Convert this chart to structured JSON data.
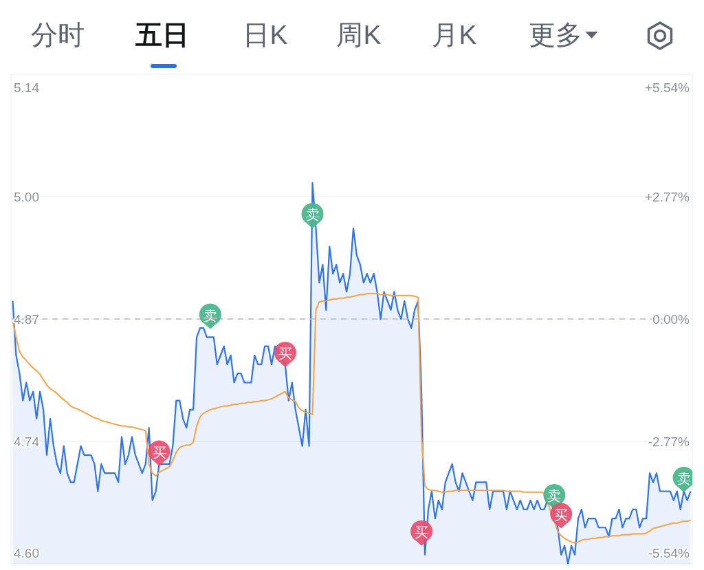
{
  "chart_data": {
    "type": "area",
    "annotations": [
      "分时",
      "五日",
      "日K",
      "周K",
      "月K",
      "更多"
    ],
    "categories": [
      null,
      null,
      null,
      null,
      null,
      null,
      null,
      null,
      null,
      null,
      null,
      null,
      null,
      null,
      null,
      null,
      null,
      null,
      null,
      null,
      null,
      null,
      null,
      null,
      null,
      null,
      null,
      null,
      null,
      null,
      null,
      null,
      null,
      null,
      null,
      null,
      null,
      null,
      null,
      null,
      null,
      null,
      null,
      null,
      null,
      null,
      null,
      null,
      null,
      null,
      null,
      null,
      null,
      null,
      null,
      null,
      null,
      null,
      null,
      null,
      null,
      null,
      null,
      null,
      null,
      null,
      null,
      null,
      null,
      null,
      null,
      null,
      null,
      null,
      null,
      null,
      null,
      null,
      null,
      null,
      null,
      null,
      null,
      null,
      null,
      null,
      null,
      null,
      null,
      null,
      null,
      null,
      null,
      null,
      null,
      null,
      null,
      null,
      null,
      null,
      null,
      null,
      null,
      null,
      null,
      null,
      null,
      null,
      null,
      null,
      null,
      null,
      null,
      null,
      null,
      null,
      null,
      null,
      null,
      null,
      null,
      null,
      null,
      null,
      null,
      null,
      null,
      null,
      null,
      null,
      null,
      null,
      null,
      null,
      null,
      null,
      null,
      null,
      null,
      null,
      null,
      null,
      null,
      null,
      null,
      null,
      null,
      null,
      null,
      null,
      null,
      null,
      null,
      null,
      null,
      null,
      null,
      null,
      null,
      null,
      null,
      null,
      null,
      null,
      null,
      null,
      null,
      null,
      null,
      null,
      null,
      null,
      null,
      null,
      null,
      null,
      null,
      null,
      null,
      null,
      null,
      null,
      null,
      null,
      null,
      null,
      null,
      null,
      null,
      null,
      null,
      null,
      null,
      null,
      null,
      null,
      null,
      null,
      null,
      null
    ],
    "series": [
      {
        "color": "#2f74ea",
        "values": [
          4.89,
          4.83,
          4.81,
          4.78,
          4.8,
          4.78,
          4.79,
          4.76,
          4.79,
          4.77,
          4.72,
          4.76,
          4.73,
          4.71,
          4.7,
          4.73,
          4.7,
          4.69,
          4.69,
          4.71,
          4.73,
          4.72,
          4.72,
          4.72,
          4.71,
          4.68,
          4.71,
          4.7,
          4.7,
          4.7,
          4.7,
          4.69,
          4.74,
          4.71,
          4.72,
          4.74,
          4.72,
          4.71,
          4.7,
          4.71,
          4.75,
          4.67,
          4.68,
          4.71,
          4.71,
          4.71,
          4.71,
          4.73,
          4.78,
          4.78,
          4.76,
          4.75,
          4.77,
          4.77,
          4.85,
          4.86,
          4.86,
          4.85,
          4.85,
          4.85,
          4.82,
          4.83,
          4.84,
          4.82,
          4.83,
          4.8,
          4.81,
          4.81,
          4.8,
          4.8,
          4.8,
          4.83,
          4.82,
          4.82,
          4.84,
          4.84,
          4.82,
          4.84,
          null,
          null,
          4.82,
          4.78,
          4.8,
          4.77,
          4.75,
          4.73,
          4.77,
          4.73,
          5.02,
          4.97,
          4.91,
          4.93,
          4.88,
          4.95,
          4.92,
          4.93,
          4.91,
          4.92,
          4.9,
          4.92,
          4.97,
          4.94,
          4.93,
          4.91,
          4.92,
          4.91,
          4.92,
          4.9,
          4.87,
          4.9,
          4.89,
          4.88,
          4.9,
          4.88,
          4.87,
          4.89,
          4.87,
          4.86,
          4.88,
          4.89,
          4.79,
          4.61,
          4.66,
          4.68,
          4.65,
          4.67,
          4.66,
          4.69,
          4.7,
          4.71,
          4.69,
          4.68,
          4.7,
          4.69,
          4.68,
          4.67,
          4.69,
          4.69,
          4.69,
          4.69,
          4.66,
          4.68,
          4.68,
          4.68,
          4.68,
          4.66,
          4.68,
          4.67,
          4.66,
          4.67,
          4.66,
          4.66,
          4.67,
          4.66,
          4.67,
          4.66,
          4.66,
          4.67,
          4.67,
          null,
          4.64,
          4.61,
          4.62,
          4.6,
          4.62,
          4.61,
          4.65,
          4.66,
          4.64,
          4.65,
          4.65,
          4.65,
          4.64,
          4.64,
          4.64,
          4.63,
          4.65,
          4.65,
          4.66,
          4.64,
          4.65,
          4.65,
          4.66,
          4.66,
          4.64,
          4.65,
          4.65,
          4.7,
          4.69,
          4.7,
          4.68,
          4.68,
          4.68,
          4.68,
          4.67,
          4.68,
          4.66,
          4.68,
          4.67,
          4.68
        ]
      },
      {
        "type": "line",
        "color": "#f5a348",
        "values": [
          4.868,
          4.85,
          4.834,
          4.828,
          4.824,
          4.82,
          4.816,
          4.813,
          4.809,
          4.803,
          4.797,
          4.793,
          4.791,
          4.788,
          4.784,
          4.781,
          4.778,
          4.774,
          4.772,
          4.771,
          4.769,
          4.767,
          4.765,
          4.763,
          4.761,
          4.76,
          4.758,
          4.757,
          4.756,
          4.755,
          4.754,
          4.753,
          4.752,
          4.752,
          4.751,
          4.751,
          4.75,
          4.749,
          4.748,
          4.747,
          4.71,
          4.7,
          4.697,
          4.701,
          4.703,
          4.705,
          4.707,
          4.714,
          4.723,
          4.728,
          4.73,
          4.731,
          4.731,
          4.734,
          4.752,
          4.762,
          4.766,
          4.768,
          4.77,
          4.771,
          4.772,
          4.773,
          4.774,
          4.774,
          4.775,
          4.776,
          4.776,
          4.777,
          4.777,
          4.778,
          4.778,
          4.779,
          4.779,
          4.78,
          4.78,
          4.781,
          4.782,
          4.784,
          4.786,
          4.788,
          4.79,
          4.783,
          4.781,
          4.779,
          4.772,
          4.769,
          4.767,
          4.766,
          4.765,
          4.88,
          4.889,
          4.89,
          4.89,
          4.891,
          4.892,
          4.892,
          4.893,
          4.893,
          4.894,
          4.894,
          4.895,
          4.896,
          4.897,
          4.897,
          4.898,
          4.898,
          4.898,
          4.898,
          4.897,
          4.897,
          4.897,
          4.896,
          4.896,
          4.896,
          4.896,
          4.896,
          4.896,
          4.896,
          4.895,
          4.894,
          4.74,
          4.686,
          4.682,
          4.681,
          4.681,
          4.68,
          4.679,
          4.679,
          4.68,
          4.68,
          4.681,
          4.681,
          4.681,
          4.681,
          4.681,
          4.681,
          4.681,
          4.681,
          4.681,
          4.681,
          4.681,
          4.681,
          4.681,
          4.681,
          4.681,
          4.68,
          4.68,
          4.68,
          4.68,
          4.68,
          4.679,
          4.679,
          4.679,
          4.679,
          4.679,
          4.679,
          4.678,
          null,
          null,
          null,
          4.636,
          4.631,
          4.628,
          4.626,
          4.624,
          4.623,
          4.624,
          4.626,
          4.627,
          4.627,
          4.628,
          4.628,
          4.629,
          4.629,
          4.63,
          4.63,
          4.631,
          4.631,
          4.631,
          4.632,
          4.632,
          4.632,
          4.633,
          4.633,
          4.633,
          4.633,
          4.634,
          4.636,
          4.639,
          4.64,
          4.641,
          4.642,
          4.643,
          4.644,
          4.645,
          4.645,
          4.646,
          4.647,
          4.647,
          4.648
        ]
      },
      {
        "type": "scatter",
        "color": "#46b488",
        "values": [
          null,
          null,
          null,
          null,
          null,
          null,
          null,
          null,
          null,
          null,
          null,
          null,
          null,
          null,
          null,
          null,
          null,
          null,
          null,
          null,
          null,
          null,
          null,
          null,
          null,
          null,
          null,
          null,
          null,
          null,
          null,
          null,
          null,
          null,
          null,
          null,
          null,
          null,
          null,
          null,
          null,
          null,
          null,
          null,
          null,
          null,
          null,
          null,
          null,
          null,
          null,
          null,
          null,
          null,
          null,
          null,
          null,
          null,
          4.873,
          null,
          null,
          null,
          null,
          null,
          null,
          null,
          null,
          null,
          null,
          null,
          null,
          null,
          null,
          null,
          null,
          null,
          null,
          null,
          null,
          null,
          null,
          null,
          null,
          null,
          null,
          null,
          null,
          null,
          4.984,
          null,
          null,
          null,
          null,
          null,
          null,
          null,
          null,
          null,
          null,
          null,
          null,
          null,
          null,
          null,
          null,
          null,
          null,
          null,
          null,
          null,
          null,
          null,
          null,
          null,
          null,
          null,
          null,
          null,
          null,
          null,
          null,
          null,
          null,
          null,
          null,
          null,
          null,
          null,
          null,
          null,
          null,
          null,
          null,
          null,
          null,
          null,
          null,
          null,
          null,
          null,
          null,
          null,
          null,
          null,
          null,
          null,
          null,
          null,
          null,
          null,
          null,
          null,
          null,
          null,
          null,
          null,
          null,
          null,
          null,
          4.674,
          null,
          null,
          null,
          null,
          null,
          null,
          null,
          null,
          null,
          null,
          null,
          null,
          null,
          null,
          null,
          null,
          null,
          null,
          null,
          null,
          null,
          null,
          null,
          null,
          null,
          null,
          null,
          null,
          null,
          null,
          null,
          null,
          null,
          null,
          null,
          null,
          null,
          4.693,
          null,
          null
        ],
        "value_labels": [
          null,
          null,
          null,
          null,
          null,
          null,
          null,
          null,
          null,
          null,
          null,
          null,
          null,
          null,
          null,
          null,
          null,
          null,
          null,
          null,
          null,
          null,
          null,
          null,
          null,
          null,
          null,
          null,
          null,
          null,
          null,
          null,
          null,
          null,
          null,
          null,
          null,
          null,
          null,
          null,
          null,
          null,
          null,
          null,
          null,
          null,
          null,
          null,
          null,
          null,
          null,
          null,
          null,
          null,
          null,
          null,
          null,
          null,
          "卖",
          null,
          null,
          null,
          null,
          null,
          null,
          null,
          null,
          null,
          null,
          null,
          null,
          null,
          null,
          null,
          null,
          null,
          null,
          null,
          null,
          null,
          null,
          null,
          null,
          null,
          null,
          null,
          null,
          null,
          "卖",
          null,
          null,
          null,
          null,
          null,
          null,
          null,
          null,
          null,
          null,
          null,
          null,
          null,
          null,
          null,
          null,
          null,
          null,
          null,
          null,
          null,
          null,
          null,
          null,
          null,
          null,
          null,
          null,
          null,
          null,
          null,
          null,
          null,
          null,
          null,
          null,
          null,
          null,
          null,
          null,
          null,
          null,
          null,
          null,
          null,
          null,
          null,
          null,
          null,
          null,
          null,
          null,
          null,
          null,
          null,
          null,
          null,
          null,
          null,
          null,
          null,
          null,
          null,
          null,
          null,
          null,
          null,
          null,
          null,
          null,
          "卖",
          null,
          null,
          null,
          null,
          null,
          null,
          null,
          null,
          null,
          null,
          null,
          null,
          null,
          null,
          null,
          null,
          null,
          null,
          null,
          null,
          null,
          null,
          null,
          null,
          null,
          null,
          null,
          null,
          null,
          null,
          null,
          null,
          null,
          null,
          null,
          null,
          null,
          "卖",
          null,
          null
        ]
      },
      {
        "type": "scatter",
        "color": "#e84c6c",
        "values": [
          null,
          null,
          null,
          null,
          null,
          null,
          null,
          null,
          null,
          null,
          null,
          null,
          null,
          null,
          null,
          null,
          null,
          null,
          null,
          null,
          null,
          null,
          null,
          null,
          null,
          null,
          null,
          null,
          null,
          null,
          null,
          null,
          null,
          null,
          null,
          null,
          null,
          null,
          null,
          null,
          null,
          null,
          null,
          4.722,
          null,
          null,
          null,
          null,
          null,
          null,
          null,
          null,
          null,
          null,
          null,
          null,
          null,
          null,
          null,
          null,
          null,
          null,
          null,
          null,
          null,
          null,
          null,
          null,
          null,
          null,
          null,
          null,
          null,
          null,
          null,
          null,
          null,
          null,
          null,
          null,
          4.831,
          null,
          null,
          null,
          null,
          null,
          null,
          null,
          null,
          null,
          null,
          null,
          null,
          null,
          null,
          null,
          null,
          null,
          null,
          null,
          null,
          null,
          null,
          null,
          null,
          null,
          null,
          null,
          null,
          null,
          null,
          null,
          null,
          null,
          null,
          null,
          null,
          null,
          null,
          null,
          4.634,
          null,
          null,
          null,
          null,
          null,
          null,
          null,
          null,
          null,
          null,
          null,
          null,
          null,
          null,
          null,
          null,
          null,
          null,
          null,
          null,
          null,
          null,
          null,
          null,
          null,
          null,
          null,
          null,
          null,
          null,
          null,
          null,
          null,
          null,
          null,
          null,
          null,
          null,
          null,
          null,
          4.653,
          null,
          null,
          null,
          null,
          null,
          null,
          null,
          null,
          null,
          null,
          null,
          null,
          null,
          null,
          null,
          null,
          null,
          null,
          null,
          null,
          null,
          null,
          null,
          null,
          null,
          null,
          null,
          null,
          null,
          null,
          null,
          null,
          null,
          null,
          null,
          null,
          null,
          null
        ],
        "value_labels": [
          null,
          null,
          null,
          null,
          null,
          null,
          null,
          null,
          null,
          null,
          null,
          null,
          null,
          null,
          null,
          null,
          null,
          null,
          null,
          null,
          null,
          null,
          null,
          null,
          null,
          null,
          null,
          null,
          null,
          null,
          null,
          null,
          null,
          null,
          null,
          null,
          null,
          null,
          null,
          null,
          null,
          null,
          null,
          "买",
          null,
          null,
          null,
          null,
          null,
          null,
          null,
          null,
          null,
          null,
          null,
          null,
          null,
          null,
          null,
          null,
          null,
          null,
          null,
          null,
          null,
          null,
          null,
          null,
          null,
          null,
          null,
          null,
          null,
          null,
          null,
          null,
          null,
          null,
          null,
          null,
          "买",
          null,
          null,
          null,
          null,
          null,
          null,
          null,
          null,
          null,
          null,
          null,
          null,
          null,
          null,
          null,
          null,
          null,
          null,
          null,
          null,
          null,
          null,
          null,
          null,
          null,
          null,
          null,
          null,
          null,
          null,
          null,
          null,
          null,
          null,
          null,
          null,
          null,
          null,
          null,
          "买",
          null,
          null,
          null,
          null,
          null,
          null,
          null,
          null,
          null,
          null,
          null,
          null,
          null,
          null,
          null,
          null,
          null,
          null,
          null,
          null,
          null,
          null,
          null,
          null,
          null,
          null,
          null,
          null,
          null,
          null,
          null,
          null,
          null,
          null,
          null,
          null,
          null,
          null,
          null,
          null,
          "买",
          null,
          null,
          null,
          null,
          null,
          null,
          null,
          null,
          null,
          null,
          null,
          null,
          null,
          null,
          null,
          null,
          null,
          null,
          null,
          null,
          null,
          null,
          null,
          null,
          null,
          null,
          null,
          null,
          null,
          null,
          null,
          null,
          null,
          null,
          null,
          null,
          null,
          null
        ]
      }
    ],
    "ylim": [
      4.6,
      5.14
    ],
    "yticks": [
      {
        "value": 4.6,
        "label": "4.60"
      },
      {
        "value": 4.735,
        "label": "4.74"
      },
      4.87,
      {
        "value": 5.005,
        "label": "5.00"
      },
      5.14
    ],
    "y2lim": [
      -5.54,
      5.54
    ],
    "y2ticks": [
      {
        "value": -5.54,
        "label": "-5.54%"
      },
      {
        "value": -2.77,
        "label": "-2.77%"
      },
      {
        "value": 0,
        "label": "0.00%"
      },
      {
        "value": 2.77,
        "label": "+2.77%"
      },
      {
        "value": 5.54,
        "label": "+5.54%"
      }
    ],
    "ref_lines": [
      {
        "axis": "y",
        "value": 4.87,
        "line_style": "dashed",
        "color": "#b9bdc6"
      }
    ],
    "grid": "y",
    "marker": "none"
  }
}
